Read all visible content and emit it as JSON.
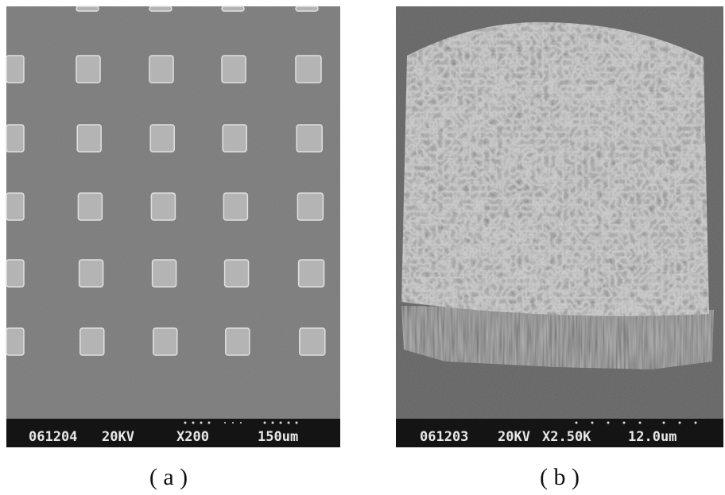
{
  "panels": [
    {
      "caption": "( a )",
      "info": [
        "061204",
        "20KV",
        "X200",
        "150um"
      ]
    },
    {
      "caption": "( b )",
      "info": [
        "061203",
        "20KV",
        "X2.50K",
        "12.0um"
      ]
    }
  ]
}
